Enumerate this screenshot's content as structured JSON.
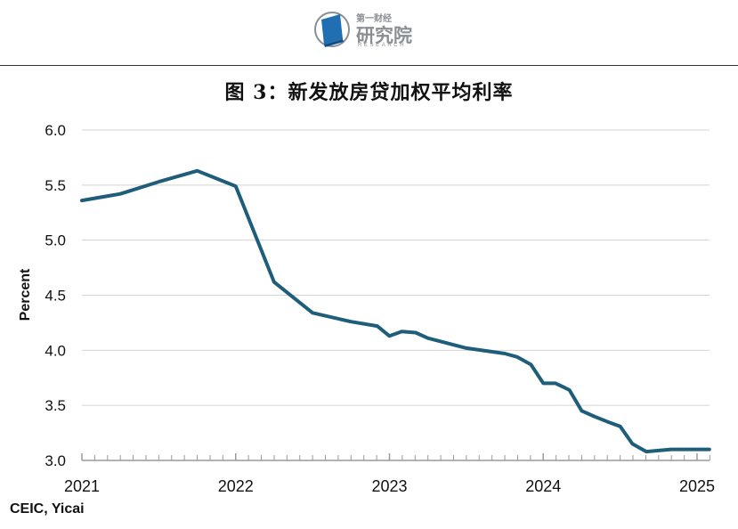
{
  "header": {
    "logo_top": "第一财经",
    "logo_main": "研究院",
    "logo_sub": "RESEARCH",
    "logo_icon": "book-icon",
    "logo_color": "#1f6fb2"
  },
  "source": "CEIC, Yicai",
  "chart_data": {
    "type": "line",
    "title": "图 3：新发放房贷加权平均利率",
    "xlabel": "",
    "ylabel": "Percent",
    "ylim": [
      3.0,
      6.0
    ],
    "yticks": [
      "3.0",
      "3.5",
      "4.0",
      "4.5",
      "5.0",
      "5.5",
      "6.0"
    ],
    "xlim": [
      2021.0,
      2025.1
    ],
    "xticks": [
      "2021",
      "2022",
      "2023",
      "2024",
      "2025"
    ],
    "grid": true,
    "line_color": "#1f5e7a",
    "series": [
      {
        "x": [
          2021.0,
          2021.25,
          2021.5,
          2021.75,
          2022.0,
          2022.25,
          2022.5,
          2022.75,
          2022.92,
          2023.0,
          2023.08,
          2023.17,
          2023.25,
          2023.5,
          2023.75,
          2023.83,
          2023.92,
          2024.0,
          2024.08,
          2024.17,
          2024.25,
          2024.33,
          2024.42,
          2024.5,
          2024.58,
          2024.67,
          2024.75,
          2024.83,
          2024.92,
          2025.0,
          2025.08
        ],
        "values": [
          5.36,
          5.42,
          5.53,
          5.63,
          5.49,
          4.62,
          4.34,
          4.26,
          4.22,
          4.13,
          4.17,
          4.16,
          4.11,
          4.02,
          3.97,
          3.94,
          3.87,
          3.7,
          3.7,
          3.64,
          3.45,
          3.4,
          3.35,
          3.31,
          3.15,
          3.08,
          3.09,
          3.1,
          3.1,
          3.1,
          3.1
        ]
      }
    ]
  }
}
